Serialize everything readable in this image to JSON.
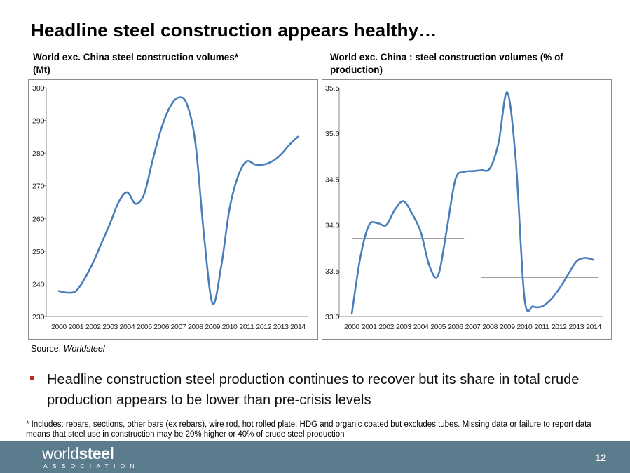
{
  "slide": {
    "title": "Headline steel construction appears healthy…",
    "source_prefix": "Source: ",
    "source_name": "Worldsteel",
    "bullet": "Headline construction steel production continues to recover but its share in total crude production appears to be lower than pre-crisis levels",
    "footnote": "* Includes: rebars, sections, other bars (ex rebars), wire rod, hot rolled plate, HDG and organic coated but excludes tubes. Missing data or failure to report data means that steel use in construction may be 20% higher or 40% of crude steel production",
    "page_number": "12"
  },
  "footer": {
    "logo_part1": "world",
    "logo_part2": "steel",
    "logo_sub": "ASSOCIATION"
  },
  "colors": {
    "line": "#4a7ebb",
    "footer": "#5a7c8d",
    "bullet": "#c0272d"
  },
  "chart_data": [
    {
      "type": "line",
      "title": "World exc. China steel construction volumes* (Mt)",
      "categories": [
        "2000",
        "2001",
        "2002",
        "2003",
        "2004",
        "2005",
        "2006",
        "2007",
        "2008",
        "2009",
        "2010",
        "2011",
        "2012",
        "2013",
        "2014"
      ],
      "x": [
        2000,
        2000.5,
        2001,
        2001.5,
        2002,
        2002.5,
        2003,
        2003.5,
        2004,
        2004.5,
        2005,
        2005.5,
        2006,
        2006.5,
        2007,
        2007.5,
        2008,
        2008.5,
        2009,
        2009.5,
        2010,
        2010.5,
        2011,
        2011.5,
        2012,
        2012.5,
        2013,
        2013.5,
        2014
      ],
      "values": [
        237.8,
        237.3,
        237.8,
        241.5,
        246.5,
        252.5,
        258.5,
        265,
        268,
        264.5,
        267.5,
        278,
        287.5,
        294,
        297,
        295,
        283,
        255,
        234,
        245,
        263,
        273,
        277.5,
        276.5,
        276.5,
        277.5,
        279.5,
        282.5,
        285
      ],
      "yticks": [
        "230",
        "240",
        "250",
        "260",
        "270",
        "280",
        "290",
        "300"
      ],
      "ylim": [
        230,
        300
      ],
      "xlabel": "",
      "ylabel": ""
    },
    {
      "type": "line",
      "title": "World exc. China : steel construction volumes (% of production)",
      "categories": [
        "2000",
        "2001",
        "2002",
        "2003",
        "2004",
        "2005",
        "2006",
        "2007",
        "2008",
        "2009",
        "2010",
        "2011",
        "2012",
        "2013",
        "2014"
      ],
      "x": [
        2000,
        2000.5,
        2001,
        2001.5,
        2002,
        2002.5,
        2003,
        2003.5,
        2004,
        2004.5,
        2005,
        2005.5,
        2006,
        2006.5,
        2007,
        2007.5,
        2008,
        2008.5,
        2009,
        2009.5,
        2010,
        2010.5,
        2011,
        2011.5,
        2012,
        2012.5,
        2013,
        2013.5,
        2014
      ],
      "values": [
        33.03,
        33.65,
        34.0,
        34.02,
        34.0,
        34.17,
        34.26,
        34.12,
        33.92,
        33.55,
        33.45,
        33.95,
        34.5,
        34.58,
        34.59,
        34.6,
        34.62,
        34.9,
        35.45,
        34.7,
        33.2,
        33.11,
        33.11,
        33.18,
        33.3,
        33.45,
        33.6,
        33.64,
        33.62
      ],
      "yticks": [
        "33.0",
        "33.5",
        "34.0",
        "34.5",
        "35.0",
        "35.5"
      ],
      "ylim": [
        33.0,
        35.5
      ],
      "reference_lines": [
        {
          "from": 2000,
          "to": 2006.5,
          "y": 33.85
        },
        {
          "from": 2007.5,
          "to": 2014.3,
          "y": 33.43
        }
      ],
      "xlabel": "",
      "ylabel": ""
    }
  ]
}
